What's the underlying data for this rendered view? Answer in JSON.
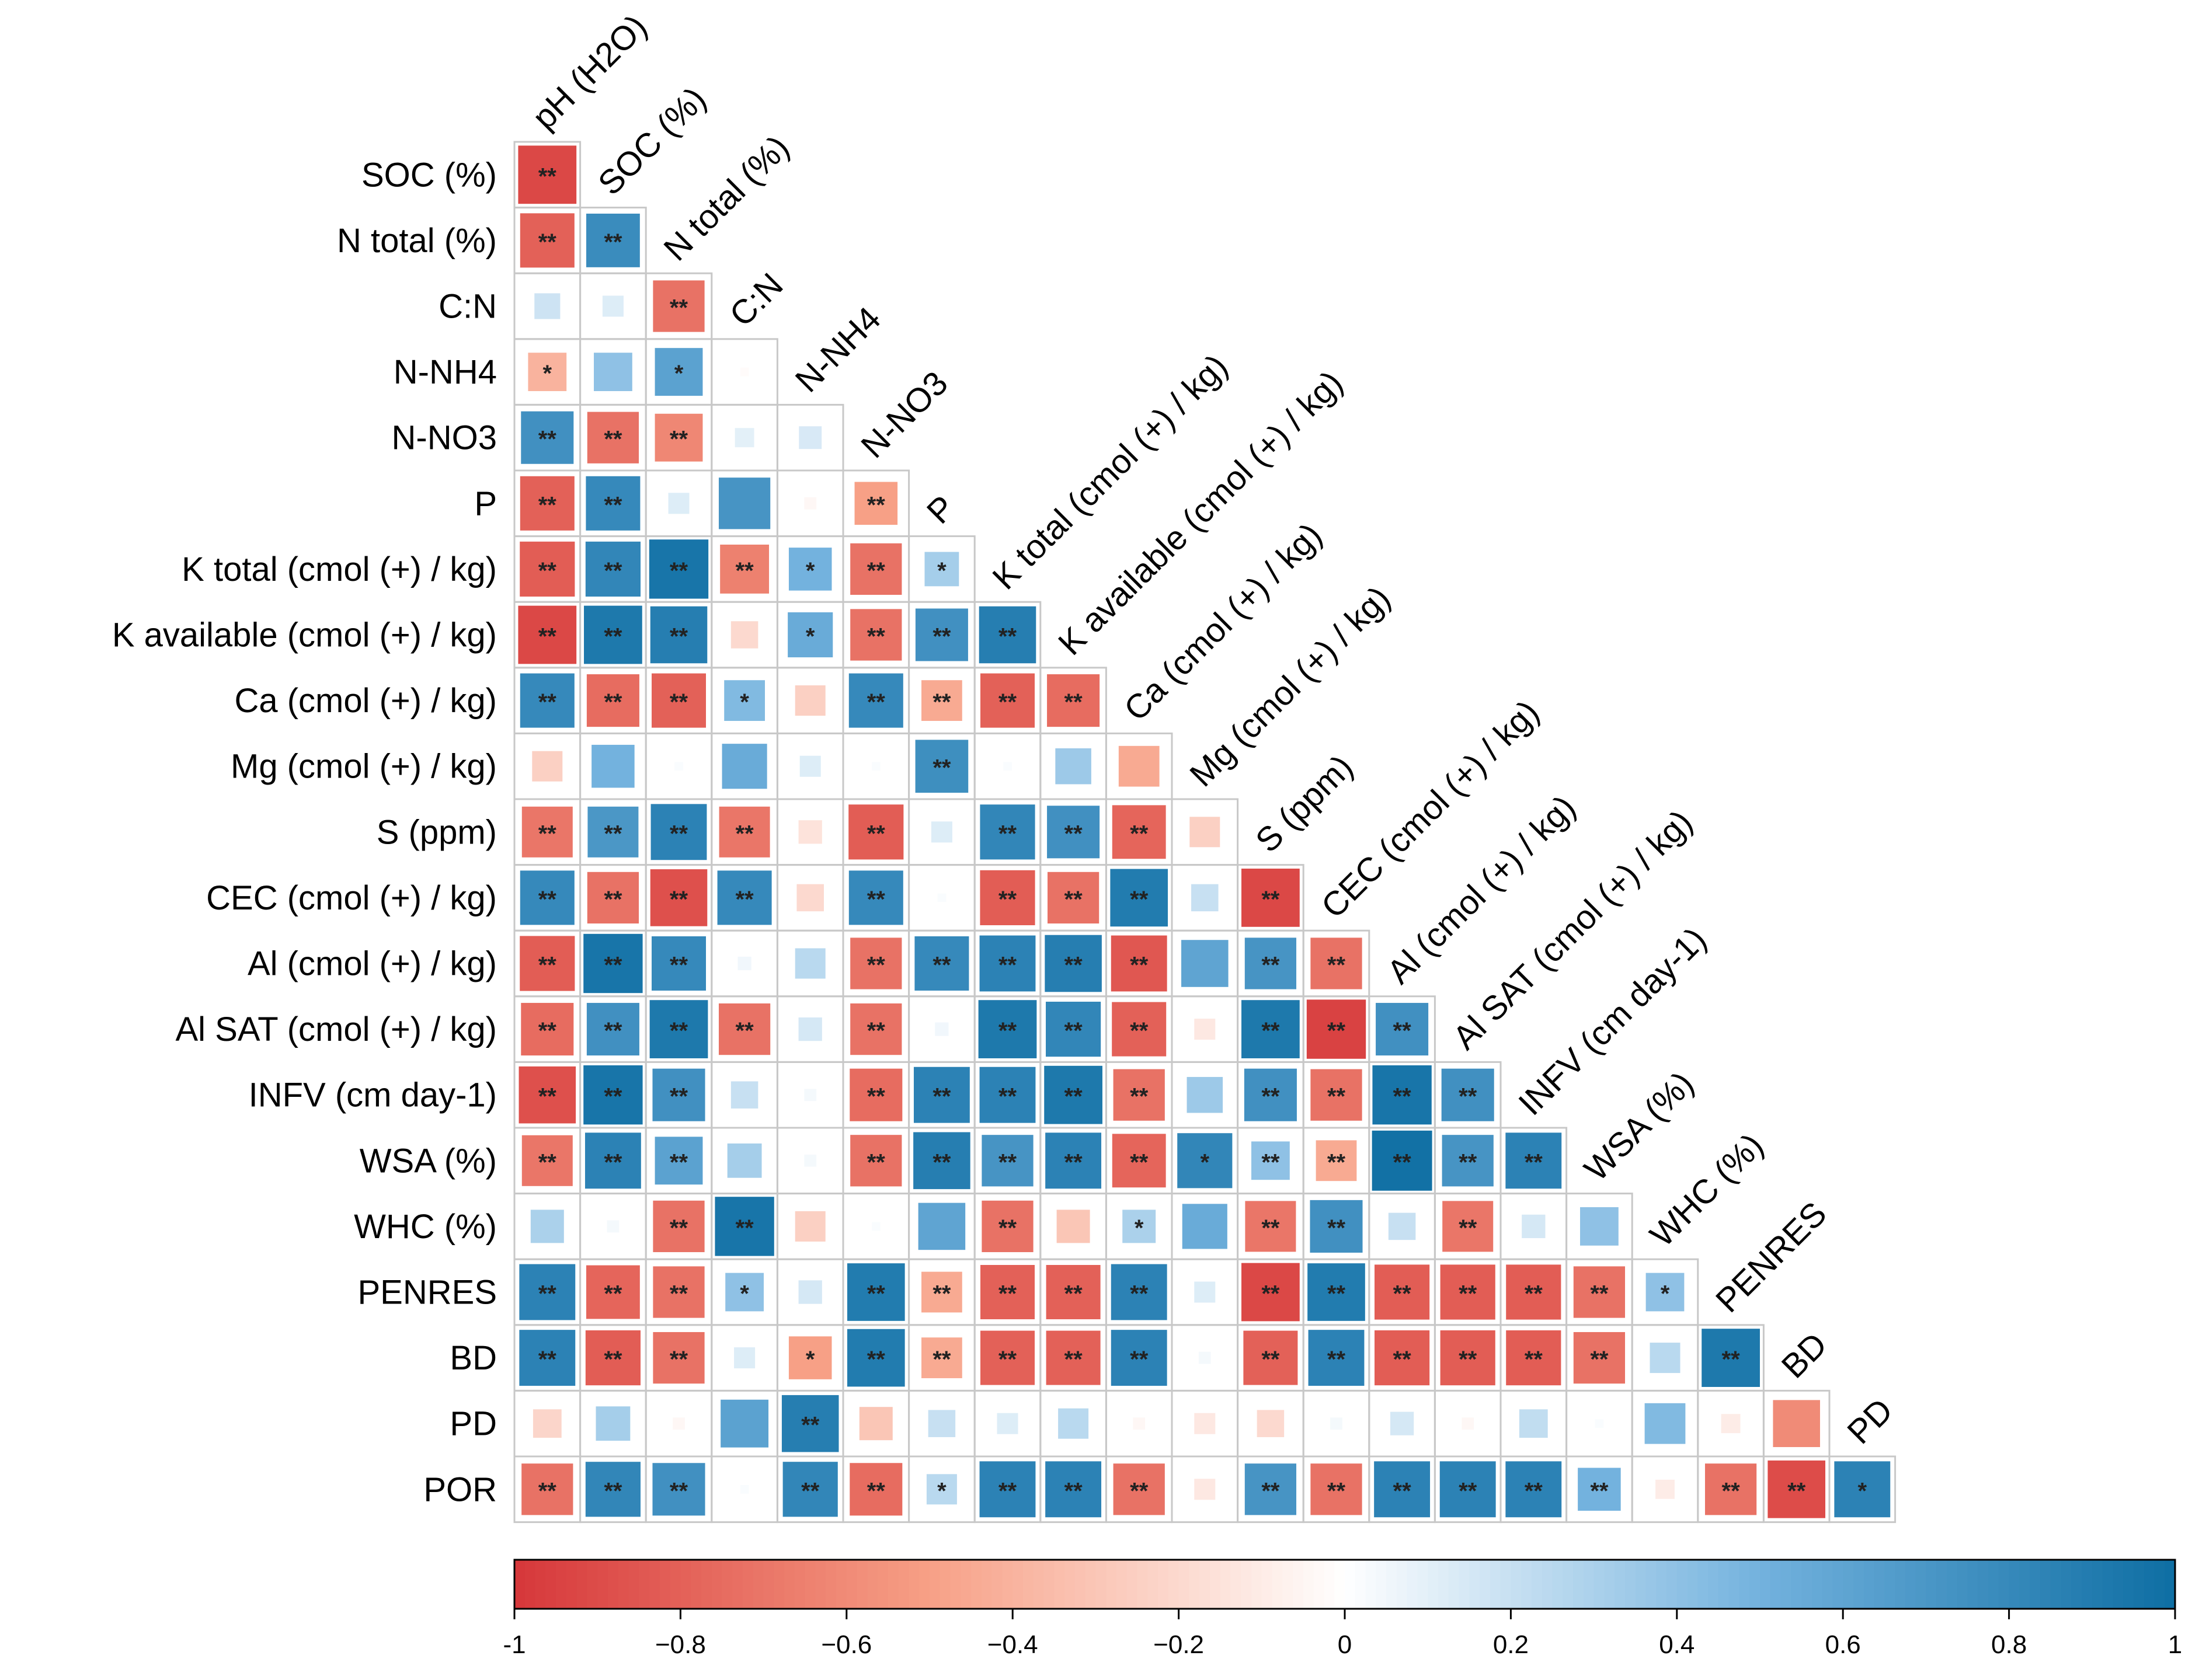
{
  "chart_data": {
    "type": "heatmap",
    "title": "",
    "subtype": "lower-triangular correlation matrix (corrplot, square method)",
    "variables": [
      "pH (H2O)",
      "SOC (%)",
      "N  total (%)",
      "C:N",
      "N-NH4",
      "N-NO3",
      "P",
      "K total (cmol (+) / kg)",
      "K available (cmol (+) / kg)",
      "Ca (cmol (+) / kg)",
      "Mg (cmol (+) / kg)",
      "S (ppm)",
      "CEC (cmol (+) / kg)",
      "Al (cmol (+) / kg)",
      "Al SAT (cmol (+) / kg)",
      "INFV (cm day-1)",
      "WSA (%)",
      "WHC (%)",
      "PENRES",
      "BD",
      "PD",
      "POR"
    ],
    "row_labels": [
      "SOC (%)",
      "N  total (%)",
      "C:N",
      "N-NH4",
      "N-NO3",
      "P",
      "K total (cmol (+) / kg)",
      "K available (cmol (+) / kg)",
      "Ca (cmol (+) / kg)",
      "Mg (cmol (+) / kg)",
      "S (ppm)",
      "CEC (cmol (+) / kg)",
      "Al (cmol (+) / kg)",
      "Al SAT (cmol (+) / kg)",
      "INFV (cm day-1)",
      "WSA (%)",
      "WHC (%)",
      "PENRES",
      "BD",
      "PD",
      "POR"
    ],
    "col_labels": [
      "pH (H2O)",
      "SOC (%)",
      "N  total (%)",
      "C:N",
      "N-NH4",
      "N-NO3",
      "P",
      "K total (cmol (+) / kg)",
      "K available (cmol (+) / kg)",
      "Ca (cmol (+) / kg)",
      "Mg (cmol (+) / kg)",
      "S (ppm)",
      "CEC (cmol (+) / kg)",
      "Al (cmol (+) / kg)",
      "Al SAT (cmol (+) / kg)",
      "INFV (cm day-1)",
      "WSA (%)",
      "WHC (%)",
      "PENRES",
      "BD",
      "PD"
    ],
    "values": [
      [
        -0.92
      ],
      [
        -0.8,
        0.78
      ],
      [
        0.18,
        0.12,
        -0.72
      ],
      [
        -0.4,
        0.4,
        0.62,
        -0.02
      ],
      [
        0.75,
        -0.72,
        -0.62,
        0.1,
        0.14
      ],
      [
        -0.8,
        0.8,
        0.12,
        0.72,
        -0.04,
        -0.5
      ],
      [
        -0.82,
        0.82,
        0.95,
        -0.65,
        0.5,
        -0.72,
        0.32
      ],
      [
        -0.92,
        0.92,
        0.88,
        -0.2,
        0.55,
        -0.72,
        0.75,
        0.88
      ],
      [
        0.8,
        -0.75,
        -0.8,
        0.45,
        -0.25,
        0.8,
        -0.45,
        -0.8,
        -0.75
      ],
      [
        -0.25,
        0.5,
        0.02,
        0.55,
        0.12,
        0.02,
        0.76,
        0.02,
        0.35,
        -0.45
      ],
      [
        -0.7,
        0.7,
        0.85,
        -0.7,
        -0.15,
        -0.82,
        0.12,
        0.82,
        0.75,
        -0.78,
        -0.25
      ],
      [
        0.8,
        -0.72,
        -0.88,
        0.8,
        -0.2,
        0.8,
        0.02,
        -0.82,
        -0.72,
        0.9,
        0.2,
        -0.92
      ],
      [
        -0.82,
        0.95,
        0.8,
        0.05,
        0.25,
        -0.72,
        0.8,
        0.85,
        0.88,
        -0.85,
        0.6,
        0.72,
        -0.72
      ],
      [
        -0.75,
        0.75,
        0.92,
        -0.72,
        0.15,
        -0.72,
        0.05,
        0.92,
        0.82,
        -0.8,
        -0.12,
        0.92,
        -0.95,
        0.75
      ],
      [
        -0.88,
        0.95,
        0.75,
        0.2,
        0.04,
        -0.75,
        0.85,
        0.85,
        0.92,
        -0.72,
        0.35,
        0.75,
        -0.72,
        0.95,
        0.75
      ],
      [
        -0.7,
        0.85,
        0.62,
        0.32,
        0.04,
        -0.72,
        0.88,
        0.72,
        0.85,
        -0.78,
        0.82,
        0.4,
        -0.45,
        0.98,
        0.72,
        0.85
      ],
      [
        0.3,
        0.04,
        -0.72,
        0.95,
        -0.25,
        0.02,
        0.6,
        -0.72,
        -0.3,
        0.3,
        0.55,
        -0.7,
        0.75,
        0.2,
        -0.7,
        0.15,
        0.4
      ],
      [
        0.85,
        -0.78,
        -0.72,
        0.4,
        0.15,
        0.9,
        -0.45,
        -0.8,
        -0.8,
        0.85,
        0.12,
        -0.92,
        0.9,
        -0.82,
        -0.82,
        -0.82,
        -0.72,
        0.4
      ],
      [
        0.85,
        -0.82,
        -0.72,
        0.12,
        -0.5,
        0.9,
        -0.45,
        -0.8,
        -0.8,
        0.85,
        0.04,
        -0.8,
        0.85,
        -0.82,
        -0.82,
        -0.82,
        -0.72,
        0.25,
        0.92
      ],
      [
        -0.22,
        0.32,
        -0.04,
        0.62,
        0.88,
        -0.3,
        0.2,
        0.12,
        0.25,
        -0.04,
        -0.12,
        -0.2,
        0.04,
        0.15,
        -0.04,
        0.22,
        0.02,
        0.45,
        -0.1,
        -0.6
      ],
      [
        -0.72,
        0.82,
        0.75,
        0.02,
        0.82,
        -0.75,
        0.25,
        0.85,
        0.85,
        -0.72,
        -0.12,
        0.72,
        -0.72,
        0.85,
        0.85,
        0.85,
        0.5,
        -0.1,
        -0.72,
        -0.9,
        0.85
      ]
    ],
    "significance": [
      [
        "**"
      ],
      [
        "**",
        "**"
      ],
      [
        "",
        "",
        "**"
      ],
      [
        "*",
        "",
        "*",
        ""
      ],
      [
        "**",
        "**",
        "**",
        "",
        ""
      ],
      [
        "**",
        "**",
        "",
        "",
        "",
        "**"
      ],
      [
        "**",
        "**",
        "**",
        "**",
        "*",
        "**",
        "*"
      ],
      [
        "**",
        "**",
        "**",
        "",
        "*",
        "**",
        "**",
        "**"
      ],
      [
        "**",
        "**",
        "**",
        "*",
        "",
        "**",
        "**",
        "**",
        "**"
      ],
      [
        "",
        "",
        "",
        "",
        "",
        "",
        "**",
        "",
        "",
        ""
      ],
      [
        "**",
        "**",
        "**",
        "**",
        "",
        "**",
        "",
        "**",
        "**",
        "**",
        ""
      ],
      [
        "**",
        "**",
        "**",
        "**",
        "",
        "**",
        "",
        "**",
        "**",
        "**",
        "",
        "**"
      ],
      [
        "**",
        "**",
        "**",
        "",
        "",
        "**",
        "**",
        "**",
        "**",
        "**",
        "",
        "**",
        "**"
      ],
      [
        "**",
        "**",
        "**",
        "**",
        "",
        "**",
        "",
        "**",
        "**",
        "**",
        "",
        "**",
        "**",
        "**"
      ],
      [
        "**",
        "**",
        "**",
        "",
        "",
        "**",
        "**",
        "**",
        "**",
        "**",
        "",
        "**",
        "**",
        "**",
        "**"
      ],
      [
        "**",
        "**",
        "**",
        "",
        "",
        "**",
        "**",
        "**",
        "**",
        "**",
        "*",
        "**",
        "**",
        "**",
        "**",
        "**"
      ],
      [
        "",
        "",
        "**",
        "**",
        "",
        "",
        "",
        "**",
        "",
        "*",
        "",
        "**",
        "**",
        "",
        "**",
        "",
        ""
      ],
      [
        "**",
        "**",
        "**",
        "*",
        "",
        "**",
        "**",
        "**",
        "**",
        "**",
        "",
        "**",
        "**",
        "**",
        "**",
        "**",
        "**",
        "*"
      ],
      [
        "**",
        "**",
        "**",
        "",
        "*",
        "**",
        "**",
        "**",
        "**",
        "**",
        "",
        "**",
        "**",
        "**",
        "**",
        "**",
        "**",
        "",
        "**"
      ],
      [
        "",
        "",
        "",
        "",
        "**",
        "",
        "",
        "",
        "",
        "",
        "",
        "",
        "",
        "",
        "",
        "",
        "",
        "",
        "",
        ""
      ],
      [
        "**",
        "**",
        "**",
        "",
        "**",
        "**",
        "*",
        "**",
        "**",
        "**",
        "",
        "**",
        "**",
        "**",
        "**",
        "**",
        "**",
        "",
        "**",
        "**",
        "*"
      ]
    ],
    "colorbar": {
      "min": -1,
      "max": 1,
      "ticks": [
        "-1",
        "−0.8",
        "−0.6",
        "−0.4",
        "−0.2",
        "0",
        "0.2",
        "0.4",
        "0.6",
        "0.8",
        "1"
      ],
      "colors": {
        "neg1": "#D6373A",
        "neg05": "#F7A086",
        "zero": "#FFFFFF",
        "pos05": "#73B2DE",
        "pos1": "#0E6EA3"
      }
    }
  }
}
